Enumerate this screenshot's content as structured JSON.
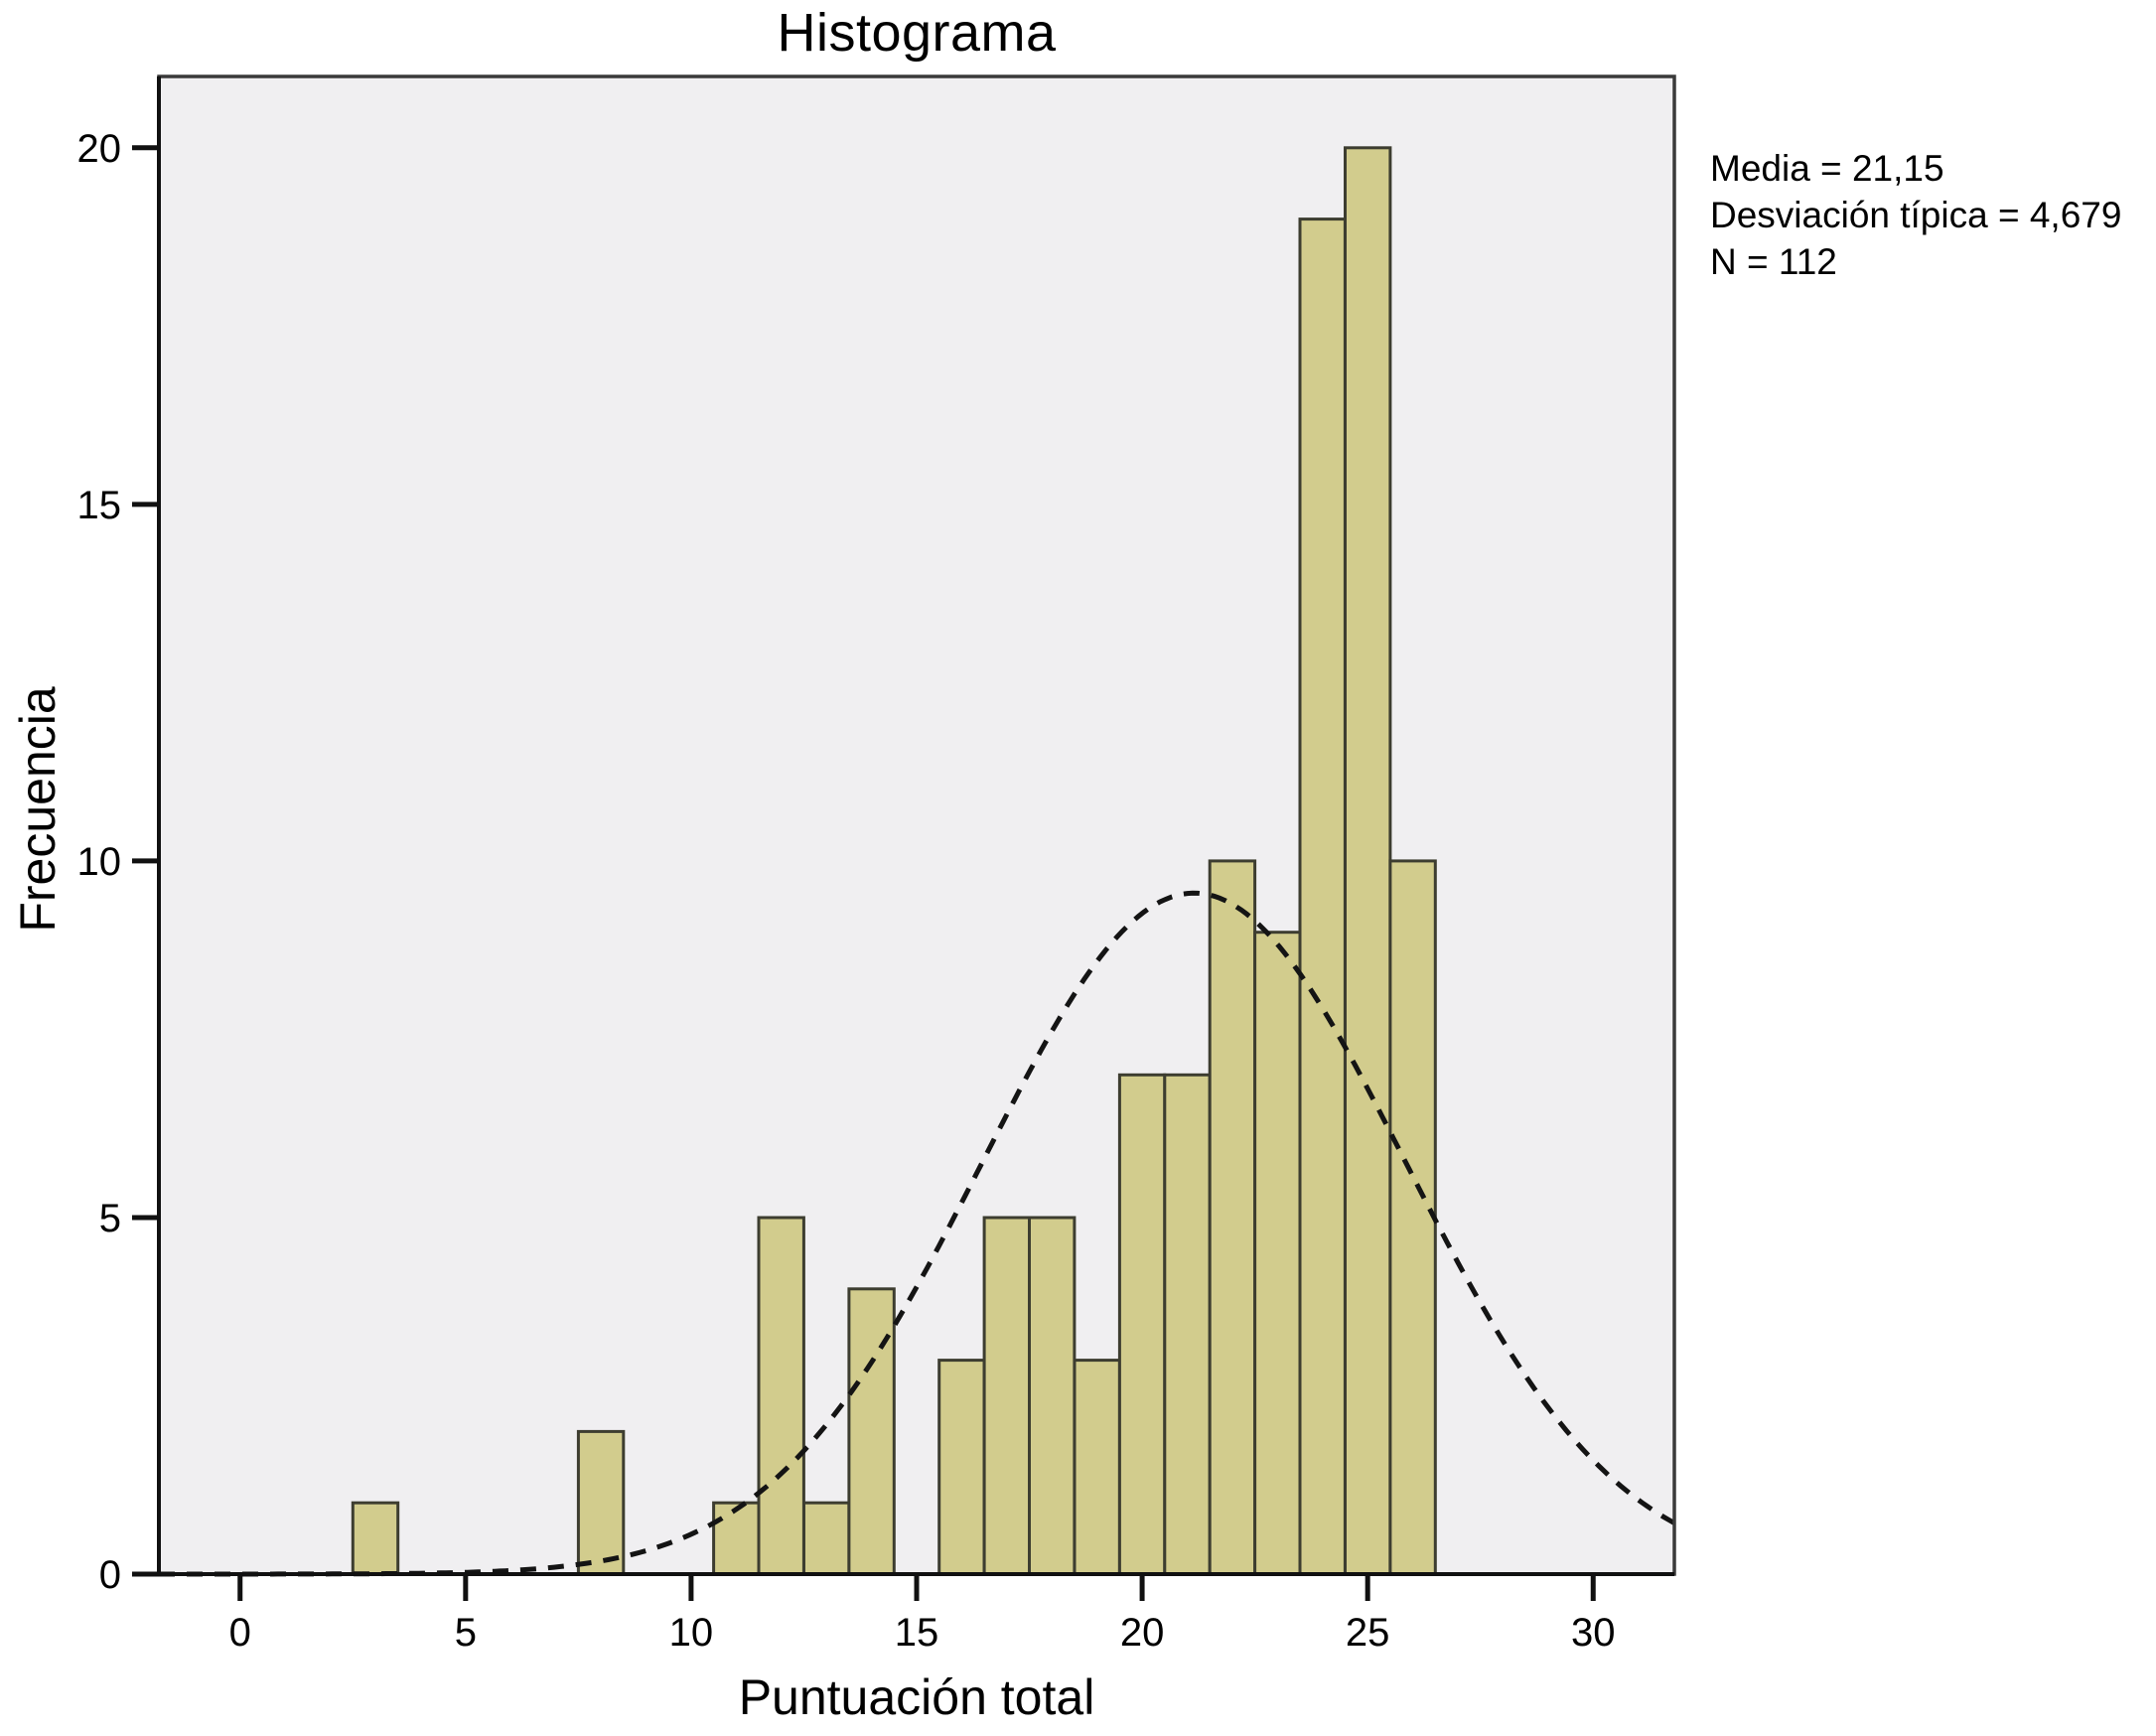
{
  "chart_data": {
    "type": "bar",
    "variant": "histogram-with-normal-curve",
    "title": "Histograma",
    "xlabel": "Puntuación total",
    "ylabel": "Frecuencia",
    "x_ticks": [
      0,
      5,
      10,
      15,
      20,
      25,
      30
    ],
    "y_ticks": [
      0,
      5,
      10,
      15,
      20
    ],
    "xlim": [
      -1.8,
      31.8
    ],
    "ylim": [
      0,
      21.0
    ],
    "bin_width": 1,
    "bin_centers": [
      3,
      4,
      5,
      6,
      7,
      8,
      9,
      10,
      11,
      12,
      13,
      14,
      15,
      16,
      17,
      18,
      19,
      20,
      21,
      22,
      23,
      24,
      25,
      26
    ],
    "counts": [
      1,
      0,
      0,
      0,
      0,
      2,
      0,
      0,
      1,
      5,
      1,
      4,
      0,
      3,
      5,
      5,
      3,
      7,
      7,
      10,
      9,
      19,
      20,
      10
    ],
    "normal_curve": {
      "mean": 21.15,
      "sd": 4.679,
      "n": 112,
      "style": "dashed"
    },
    "stats_lines": [
      "Media = 21,15",
      "Desviación típica = 4,679",
      "N = 112"
    ],
    "grid": false,
    "legend_position": "right-top",
    "colors": {
      "bar_fill": "#d2cc8d",
      "bar_edge": "#3d3d30",
      "plot_bg": "#f0eff1",
      "frame": "#3a3a3a",
      "axis": "#111111",
      "curve": "#141414",
      "text": "#000000",
      "outer_bg": "#ffffff"
    }
  }
}
